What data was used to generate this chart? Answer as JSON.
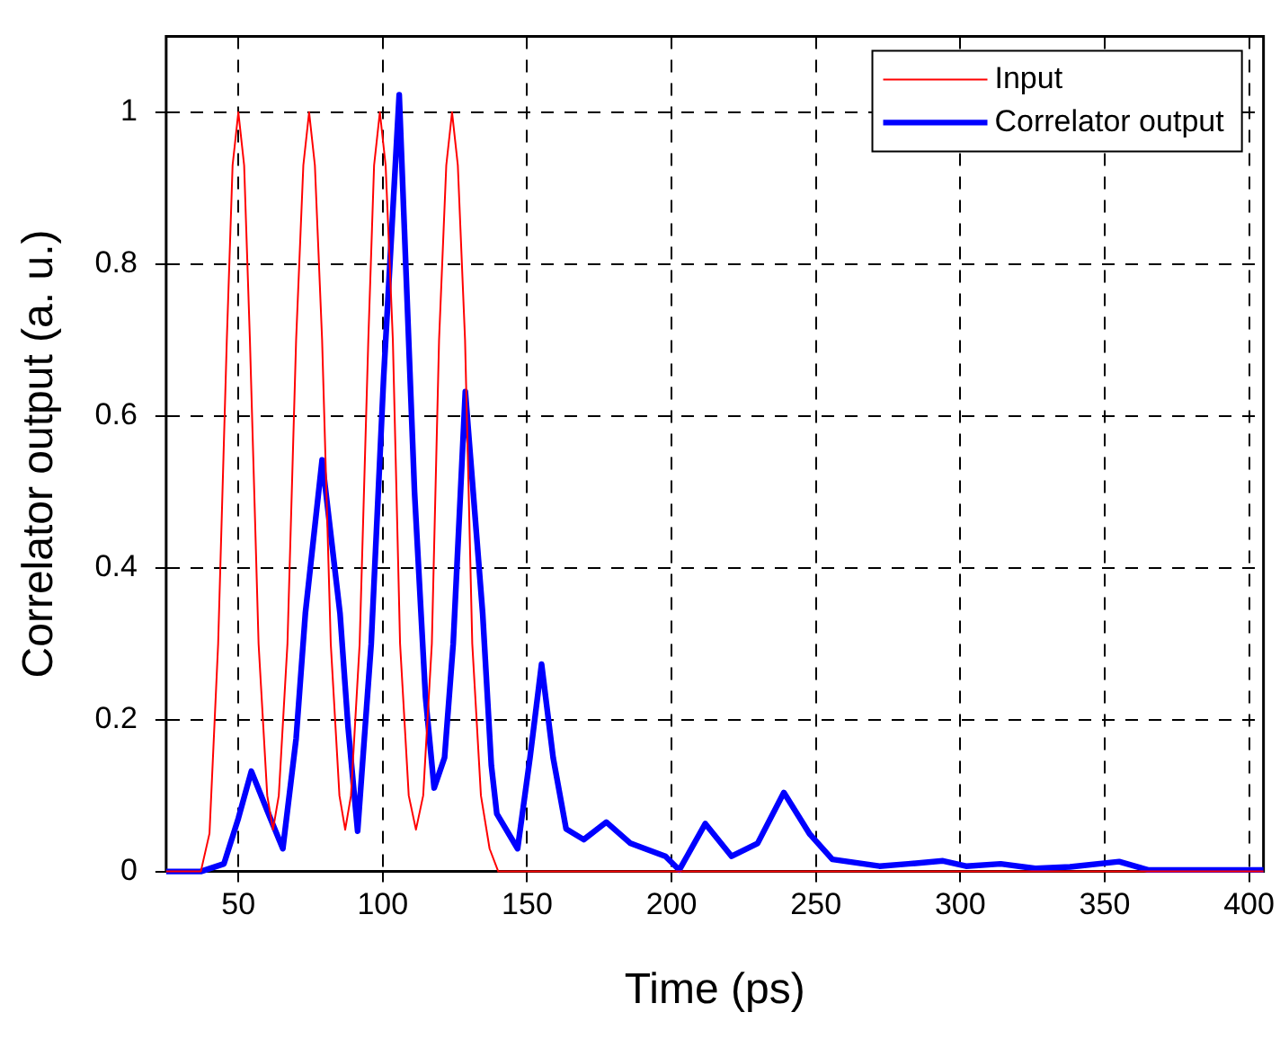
{
  "chart_data": {
    "type": "line",
    "xlabel": "Time (ps)",
    "ylabel": "Correlator output (a. u.)",
    "xlim": [
      25,
      405
    ],
    "xticks": [
      50,
      100,
      150,
      200,
      250,
      300,
      350,
      400
    ],
    "ylim": [
      0,
      1.1
    ],
    "yticks": [
      0,
      0.2,
      0.4,
      0.6,
      0.8,
      1
    ],
    "grid": true,
    "legend": "top right",
    "marker": "none",
    "series": [
      {
        "name": "Input",
        "color": "#ff0000",
        "x": [
          25,
          37,
          40,
          43,
          46,
          48,
          50,
          52,
          54,
          57,
          60,
          62,
          64,
          67,
          70,
          72.5,
          74.5,
          76.5,
          79,
          82,
          85,
          87,
          89,
          92,
          95,
          97,
          99,
          101,
          103.5,
          106,
          109,
          111.5,
          114,
          117,
          119.5,
          122,
          124,
          126,
          128.5,
          131,
          134,
          137,
          140,
          405
        ],
        "values": [
          0,
          0,
          0.05,
          0.3,
          0.7,
          0.93,
          1,
          0.93,
          0.7,
          0.3,
          0.1,
          0.055,
          0.1,
          0.3,
          0.7,
          0.93,
          1,
          0.93,
          0.7,
          0.3,
          0.1,
          0.055,
          0.1,
          0.3,
          0.7,
          0.93,
          1,
          0.93,
          0.7,
          0.3,
          0.1,
          0.055,
          0.1,
          0.3,
          0.7,
          0.93,
          1,
          0.93,
          0.7,
          0.3,
          0.1,
          0.03,
          0,
          0
        ]
      },
      {
        "name": "Correlator output",
        "color": "#0000ff",
        "x": [
          25,
          37,
          45,
          50,
          54.5,
          60,
          65.4,
          70,
          73.2,
          79,
          85.2,
          88,
          91.3,
          96,
          100.3,
          105.7,
          111,
          114.8,
          117.8,
          121.4,
          124.4,
          128.6,
          134.6,
          137.6,
          139.5,
          146.7,
          151,
          155,
          159,
          163.5,
          169.6,
          177.4,
          185.8,
          197.9,
          202.7,
          211.7,
          220.8,
          229.8,
          238.9,
          247.9,
          255.7,
          272,
          282,
          294,
          302,
          314,
          326,
          338,
          355,
          365,
          405
        ],
        "values": [
          0,
          0,
          0.01,
          0.07,
          0.132,
          0.08,
          0.03,
          0.175,
          0.34,
          0.542,
          0.34,
          0.19,
          0.053,
          0.3,
          0.65,
          1.023,
          0.5,
          0.23,
          0.11,
          0.15,
          0.3,
          0.632,
          0.34,
          0.14,
          0.076,
          0.03,
          0.15,
          0.273,
          0.15,
          0.056,
          0.042,
          0.065,
          0.037,
          0.02,
          0.002,
          0.063,
          0.02,
          0.037,
          0.104,
          0.049,
          0.016,
          0.007,
          0.01,
          0.014,
          0.007,
          0.01,
          0.004,
          0.006,
          0.013,
          0.002,
          0.002
        ]
      }
    ]
  }
}
